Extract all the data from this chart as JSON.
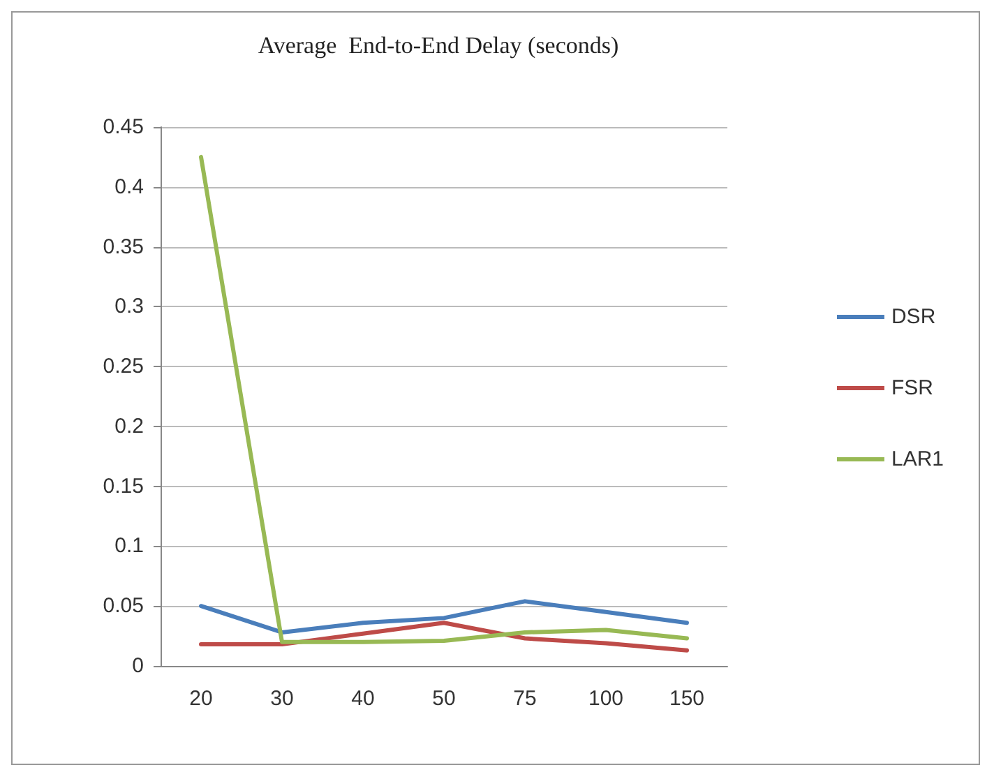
{
  "chart_data": {
    "type": "line",
    "title": "Average  End-to-End Delay (seconds)",
    "categories": [
      "20",
      "30",
      "40",
      "50",
      "75",
      "100",
      "150"
    ],
    "series": [
      {
        "name": "DSR",
        "color": "#4a7ebb",
        "values": [
          0.05,
          0.028,
          0.036,
          0.04,
          0.054,
          0.045,
          0.036
        ]
      },
      {
        "name": "FSR",
        "color": "#be4b48",
        "values": [
          0.018,
          0.018,
          0.027,
          0.036,
          0.023,
          0.019,
          0.013
        ]
      },
      {
        "name": "LAR1",
        "color": "#98b954",
        "values": [
          0.425,
          0.02,
          0.02,
          0.021,
          0.028,
          0.03,
          0.023
        ]
      }
    ],
    "ylim": [
      0,
      0.45
    ],
    "yticks": [
      0,
      0.05,
      0.1,
      0.15,
      0.2,
      0.25,
      0.3,
      0.35,
      0.4,
      0.45
    ],
    "grid": "y",
    "legend": "right",
    "marker": "none",
    "line_style": "solid"
  }
}
